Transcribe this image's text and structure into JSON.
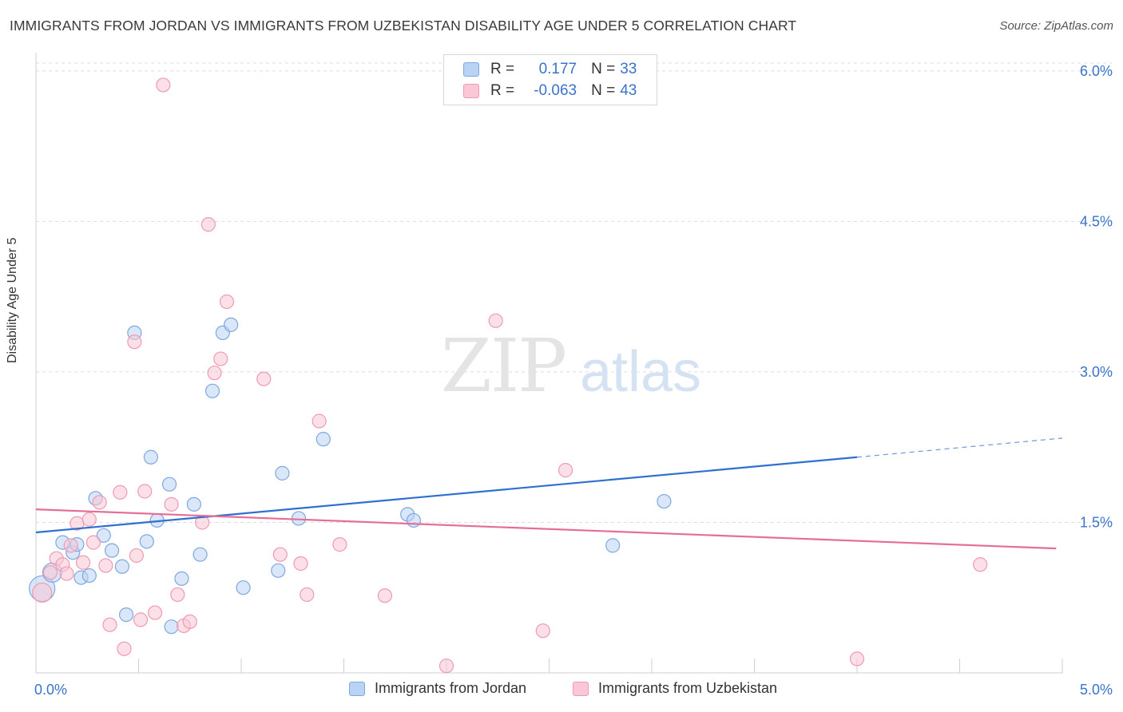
{
  "title": "IMMIGRANTS FROM JORDAN VS IMMIGRANTS FROM UZBEKISTAN DISABILITY AGE UNDER 5 CORRELATION CHART",
  "source": "Source: ZipAtlas.com",
  "watermark": {
    "zip": "ZIP",
    "atlas": "atlas"
  },
  "colors": {
    "blue_fill": "#b9d3f4",
    "blue_stroke": "#7ea8df",
    "blue_line": "#2f6fd0",
    "pink_fill": "#f9c7d6",
    "pink_stroke": "#ee9ab4",
    "pink_line": "#e56d98",
    "axis_text": "#3a74c8",
    "grid": "#dddddd"
  },
  "legend": {
    "r_label": "R =",
    "n_label": "N =",
    "jordan": {
      "r": "0.177",
      "n": "33"
    },
    "uzbekistan": {
      "r": "-0.063",
      "n": "43"
    }
  },
  "chart_data": {
    "type": "scatter",
    "title": "IMMIGRANTS FROM JORDAN VS IMMIGRANTS FROM UZBEKISTAN DISABILITY AGE UNDER 5 CORRELATION CHART",
    "xlabel": "",
    "ylabel": "Disability Age Under 5",
    "xlim": [
      0,
      5.0
    ],
    "ylim": [
      0,
      6.15
    ],
    "x_tick_labels": [
      "0.0%",
      "5.0%"
    ],
    "y_tick_labels": [
      "1.5%",
      "3.0%",
      "4.5%",
      "6.0%"
    ],
    "y_ticks": [
      1.5,
      3.0,
      4.5,
      6.0
    ],
    "grid": true,
    "legend_position": "top-center",
    "series": [
      {
        "name": "Immigrants from Jordan",
        "r": 0.177,
        "n": 33,
        "points": [
          {
            "x": 0.03,
            "y": 0.84,
            "s": 3
          },
          {
            "x": 0.08,
            "y": 1.0,
            "s": 2
          },
          {
            "x": 0.13,
            "y": 1.3
          },
          {
            "x": 0.18,
            "y": 1.2
          },
          {
            "x": 0.22,
            "y": 0.95
          },
          {
            "x": 0.26,
            "y": 0.97
          },
          {
            "x": 0.29,
            "y": 1.74
          },
          {
            "x": 0.33,
            "y": 1.37
          },
          {
            "x": 0.37,
            "y": 1.22
          },
          {
            "x": 0.42,
            "y": 1.06
          },
          {
            "x": 0.44,
            "y": 0.58
          },
          {
            "x": 0.48,
            "y": 3.39
          },
          {
            "x": 0.54,
            "y": 1.31
          },
          {
            "x": 0.56,
            "y": 2.15
          },
          {
            "x": 0.59,
            "y": 1.52
          },
          {
            "x": 0.65,
            "y": 1.88
          },
          {
            "x": 0.66,
            "y": 0.46
          },
          {
            "x": 0.71,
            "y": 0.94
          },
          {
            "x": 0.77,
            "y": 1.68
          },
          {
            "x": 0.8,
            "y": 1.18
          },
          {
            "x": 0.86,
            "y": 2.81
          },
          {
            "x": 0.91,
            "y": 3.39
          },
          {
            "x": 0.95,
            "y": 3.47
          },
          {
            "x": 1.01,
            "y": 0.85
          },
          {
            "x": 1.18,
            "y": 1.02
          },
          {
            "x": 1.2,
            "y": 1.99
          },
          {
            "x": 1.28,
            "y": 1.54
          },
          {
            "x": 1.4,
            "y": 2.33
          },
          {
            "x": 1.81,
            "y": 1.58
          },
          {
            "x": 1.84,
            "y": 1.52
          },
          {
            "x": 2.81,
            "y": 1.27
          },
          {
            "x": 3.06,
            "y": 1.71
          },
          {
            "x": 0.2,
            "y": 1.28
          }
        ],
        "trend": {
          "x0": 0,
          "y0": 1.4,
          "x1": 4.0,
          "y1": 2.15,
          "dash_to_x": 5.0,
          "dash_to_y": 2.34
        }
      },
      {
        "name": "Immigrants from Uzbekistan",
        "r": -0.063,
        "n": 43,
        "points": [
          {
            "x": 0.03,
            "y": 0.8,
            "s": 2
          },
          {
            "x": 0.07,
            "y": 1.0
          },
          {
            "x": 0.1,
            "y": 1.14
          },
          {
            "x": 0.13,
            "y": 1.08
          },
          {
            "x": 0.17,
            "y": 1.27
          },
          {
            "x": 0.2,
            "y": 1.49
          },
          {
            "x": 0.23,
            "y": 1.1
          },
          {
            "x": 0.26,
            "y": 1.53
          },
          {
            "x": 0.28,
            "y": 1.3
          },
          {
            "x": 0.31,
            "y": 1.7
          },
          {
            "x": 0.34,
            "y": 1.07
          },
          {
            "x": 0.36,
            "y": 0.48
          },
          {
            "x": 0.41,
            "y": 1.8
          },
          {
            "x": 0.43,
            "y": 0.24
          },
          {
            "x": 0.48,
            "y": 3.3
          },
          {
            "x": 0.49,
            "y": 1.17
          },
          {
            "x": 0.51,
            "y": 0.53
          },
          {
            "x": 0.53,
            "y": 1.81
          },
          {
            "x": 0.58,
            "y": 0.6
          },
          {
            "x": 0.62,
            "y": 5.86
          },
          {
            "x": 0.66,
            "y": 1.68
          },
          {
            "x": 0.69,
            "y": 0.78
          },
          {
            "x": 0.72,
            "y": 0.47
          },
          {
            "x": 0.75,
            "y": 0.51
          },
          {
            "x": 0.81,
            "y": 1.5
          },
          {
            "x": 0.84,
            "y": 4.47
          },
          {
            "x": 0.87,
            "y": 2.99
          },
          {
            "x": 0.9,
            "y": 3.13
          },
          {
            "x": 0.93,
            "y": 3.7
          },
          {
            "x": 1.11,
            "y": 2.93
          },
          {
            "x": 1.19,
            "y": 1.18
          },
          {
            "x": 1.29,
            "y": 1.09
          },
          {
            "x": 1.32,
            "y": 0.78
          },
          {
            "x": 1.38,
            "y": 2.51
          },
          {
            "x": 1.48,
            "y": 1.28
          },
          {
            "x": 1.7,
            "y": 0.77
          },
          {
            "x": 2.0,
            "y": 0.07
          },
          {
            "x": 2.24,
            "y": 3.51
          },
          {
            "x": 2.47,
            "y": 0.42
          },
          {
            "x": 2.58,
            "y": 2.02
          },
          {
            "x": 4.0,
            "y": 0.14
          },
          {
            "x": 4.6,
            "y": 1.08
          },
          {
            "x": 0.15,
            "y": 0.99
          }
        ],
        "trend": {
          "x0": 0,
          "y0": 1.63,
          "x1": 4.97,
          "y1": 1.24
        }
      }
    ]
  }
}
